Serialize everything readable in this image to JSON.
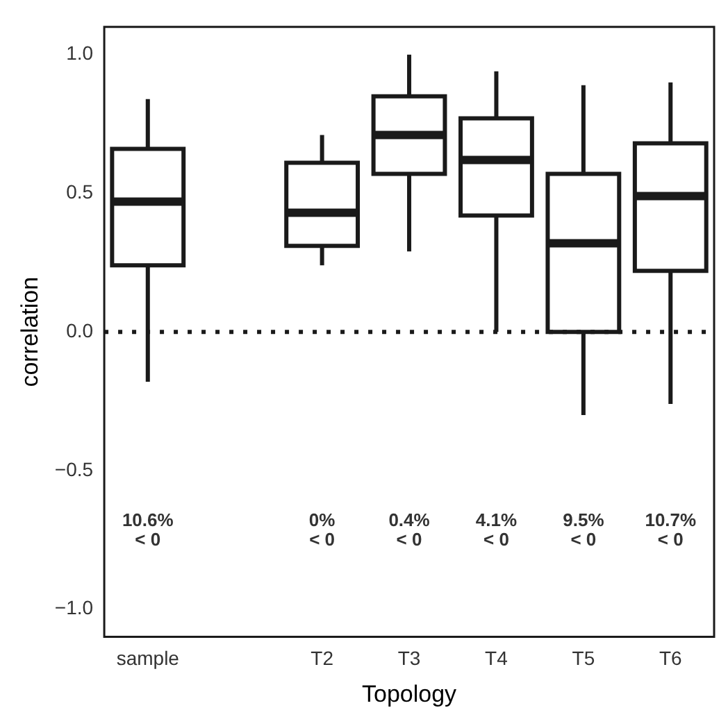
{
  "chart_data": {
    "type": "box",
    "xlabel": "Topology",
    "ylabel": "correlation",
    "categories": [
      "sample",
      null,
      "T2",
      "T3",
      "T4",
      "T5",
      "T6"
    ],
    "boxes": [
      {
        "low": -0.18,
        "q1": 0.24,
        "median": 0.47,
        "q3": 0.66,
        "high": 0.84
      },
      null,
      {
        "low": 0.24,
        "q1": 0.31,
        "median": 0.43,
        "q3": 0.61,
        "high": 0.71
      },
      {
        "low": 0.29,
        "q1": 0.57,
        "median": 0.71,
        "q3": 0.85,
        "high": 1.0
      },
      {
        "low": 0.0,
        "q1": 0.42,
        "median": 0.62,
        "q3": 0.77,
        "high": 0.94
      },
      {
        "low": -0.3,
        "q1": 0.0,
        "median": 0.32,
        "q3": 0.57,
        "high": 0.89
      },
      {
        "low": -0.26,
        "q1": 0.22,
        "median": 0.49,
        "q3": 0.68,
        "high": 0.9
      }
    ],
    "color": "#1a1a1a",
    "ylim": [
      -1.1,
      1.1
    ],
    "yticks": [
      {
        "value": -1,
        "label": "−1.0"
      },
      {
        "value": -0.5,
        "label": "−0.5"
      },
      {
        "value": 0,
        "label": "0.0"
      },
      {
        "value": 0.5,
        "label": "0.5"
      },
      {
        "value": 1,
        "label": "1.0"
      }
    ],
    "grid": false,
    "legend": false,
    "ref_lines": [
      {
        "axis": "y",
        "value": 0,
        "line_style": "dotted"
      }
    ],
    "annotations": [
      "10.6%\n< 0",
      "0%\n< 0",
      "0.4%\n< 0",
      "4.1%\n< 0",
      "9.5%\n< 0",
      "10.7%\n< 0"
    ]
  }
}
